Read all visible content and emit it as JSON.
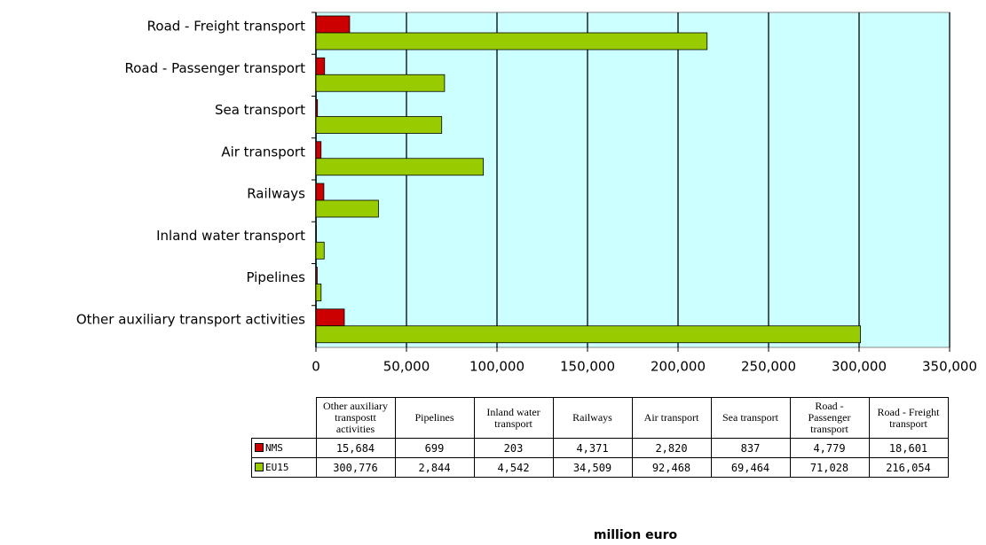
{
  "chart_data": {
    "type": "hbar",
    "categories": [
      "Other auxiliary transport activities",
      "Pipelines",
      "Inland water transport",
      "Railways",
      "Air transport",
      "Sea transport",
      "Road - Passenger transport",
      "Road - Freight transport"
    ],
    "table_headers": [
      "Other auxiliary transpostt activities",
      "Pipelines",
      "Inland water transport",
      "Railways",
      "Air transport",
      "Sea transport",
      "Road - Passenger transport",
      "Road - Freight transport"
    ],
    "series": [
      {
        "name": "NMS",
        "color": "#cc0000",
        "values": [
          15684,
          699,
          203,
          4371,
          2820,
          837,
          4779,
          18601
        ],
        "value_labels": [
          "15,684",
          "699",
          "203",
          "4,371",
          "2,820",
          "837",
          "4,779",
          "18,601"
        ]
      },
      {
        "name": "EU15",
        "color": "#99cc00",
        "values": [
          300776,
          2844,
          4542,
          34509,
          92468,
          69464,
          71028,
          216054
        ],
        "value_labels": [
          "300,776",
          "2,844",
          "4,542",
          "34,509",
          "92,468",
          "69,464",
          "71,028",
          "216,054"
        ]
      }
    ],
    "xlim": [
      0,
      350000
    ],
    "xticks": [
      0,
      {
        "value": 50000,
        "label": "50,000"
      },
      {
        "value": 100000,
        "label": "100,000"
      },
      {
        "value": 150000,
        "label": "150,000"
      },
      {
        "value": 200000,
        "label": "200,000"
      },
      {
        "value": 250000,
        "label": "250,000"
      },
      {
        "value": 300000,
        "label": "300,000"
      },
      {
        "value": 350000,
        "label": "350,000"
      }
    ],
    "xlabel": "million euro",
    "grid": true,
    "background": "#ccffff"
  }
}
